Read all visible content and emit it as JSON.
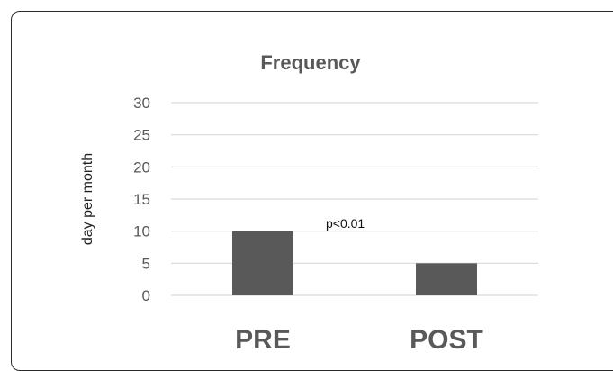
{
  "chart_data": {
    "type": "bar",
    "title": "Frequency",
    "ylabel": "day per month",
    "xlabel": "",
    "categories": [
      "PRE",
      "POST"
    ],
    "values": [
      10,
      5
    ],
    "ylim": [
      0,
      30
    ],
    "yticks": [
      0,
      5,
      10,
      15,
      20,
      25,
      30
    ],
    "ytick_labels": [
      "0",
      "5",
      "10",
      "15",
      "20",
      "25",
      "30"
    ],
    "annotation": "p<0.01",
    "grid": true,
    "legend": "none",
    "bar_color": "#595959",
    "grid_color": "#d9d9d9",
    "text_color": "#595959"
  }
}
